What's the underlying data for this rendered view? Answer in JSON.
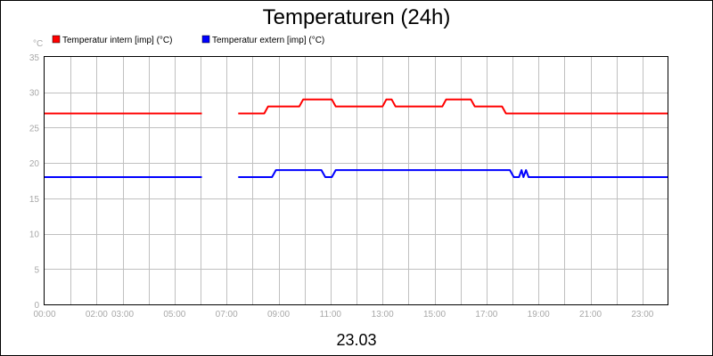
{
  "chart_data": {
    "type": "line",
    "title": "Temperaturen (24h)",
    "subtitle": "23.03",
    "ylabel": "°C",
    "ylim": [
      0,
      35
    ],
    "yticks": [
      0,
      5,
      10,
      15,
      20,
      25,
      30,
      35
    ],
    "xlim": [
      0,
      24
    ],
    "xtick_labels": [
      "00:00",
      "02:00",
      "03:00",
      "05:00",
      "07:00",
      "09:00",
      "11:00",
      "13:00",
      "15:00",
      "17:00",
      "19:00",
      "21:00",
      "23:00"
    ],
    "xtick_hours": [
      0,
      2,
      3,
      5,
      7,
      9,
      11,
      13,
      15,
      17,
      19,
      21,
      23
    ],
    "grid": true,
    "legend_position": "top-left",
    "series": [
      {
        "name": "Temperatur intern [imp] (°C)",
        "color": "#ff0000",
        "segments": [
          [
            [
              0,
              27
            ],
            [
              6.05,
              27
            ]
          ],
          [
            [
              7.45,
              27
            ],
            [
              8.45,
              27
            ],
            [
              8.6,
              28
            ],
            [
              9.8,
              28
            ],
            [
              9.95,
              29
            ],
            [
              11.05,
              29
            ],
            [
              11.2,
              28
            ],
            [
              13.0,
              28
            ],
            [
              13.15,
              29
            ],
            [
              13.35,
              29
            ],
            [
              13.5,
              28
            ],
            [
              15.3,
              28
            ],
            [
              15.45,
              29
            ],
            [
              16.4,
              29
            ],
            [
              16.55,
              28
            ],
            [
              17.6,
              28
            ],
            [
              17.75,
              27
            ],
            [
              24,
              27
            ]
          ]
        ]
      },
      {
        "name": "Temperatur extern [imp] (°C)",
        "color": "#0000ff",
        "segments": [
          [
            [
              0,
              18
            ],
            [
              6.05,
              18
            ]
          ],
          [
            [
              7.45,
              18
            ],
            [
              8.75,
              18
            ],
            [
              8.9,
              19
            ],
            [
              10.65,
              19
            ],
            [
              10.8,
              18
            ],
            [
              11.05,
              18
            ],
            [
              11.2,
              19
            ],
            [
              17.9,
              19
            ],
            [
              18.05,
              18
            ],
            [
              18.25,
              18
            ],
            [
              18.35,
              19
            ],
            [
              18.42,
              18
            ],
            [
              18.52,
              19
            ],
            [
              18.62,
              18
            ],
            [
              24,
              18
            ]
          ]
        ]
      }
    ]
  }
}
